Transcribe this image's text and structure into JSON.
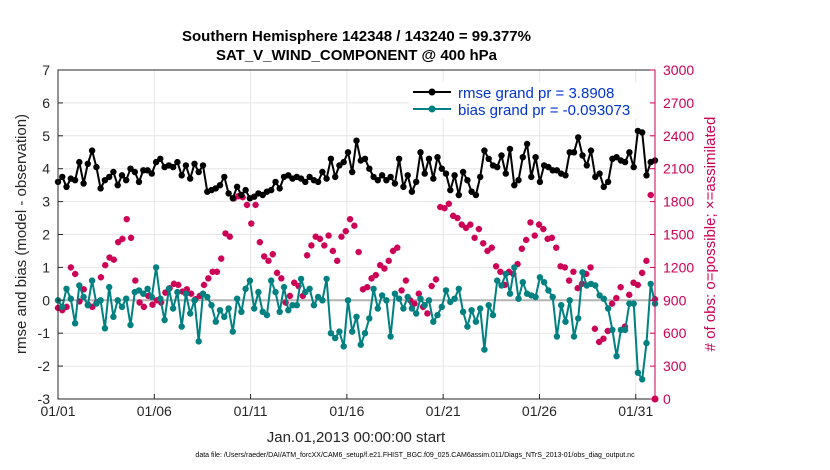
{
  "chart_data": {
    "type": "line",
    "title": "Southern Hemisphere 142348 / 143240 = 99.377%",
    "subtitle": "SAT_V_WIND_COMPONENT @ 400 hPa",
    "xlabel": "Jan.01,2013 00:00:00 start",
    "ylabel": "rmse and bias (model - observation)",
    "ylabel_right": "# of obs: o=possible; ×=assimilated",
    "ylim": [
      -3,
      7
    ],
    "ylim_right": [
      0,
      3000
    ],
    "xlim": [
      1,
      32
    ],
    "x_ticks": [
      1,
      6,
      11,
      16,
      21,
      26,
      31
    ],
    "x_tick_labels": [
      "01/01",
      "01/06",
      "01/11",
      "01/16",
      "01/21",
      "01/26",
      "01/31"
    ],
    "y_ticks": [
      -3,
      -2,
      -1,
      0,
      1,
      2,
      3,
      4,
      5,
      6,
      7
    ],
    "y_tick_labels": [
      "-3",
      "-2",
      "-1",
      "0",
      "1",
      "2",
      "3",
      "4",
      "5",
      "6",
      "7"
    ],
    "y_ticks_right": [
      0,
      300,
      600,
      900,
      1200,
      1500,
      1800,
      2100,
      2400,
      2700,
      3000
    ],
    "y_tick_labels_right": [
      "0",
      "300",
      "600",
      "900",
      "1200",
      "1500",
      "1800",
      "2100",
      "2400",
      "2700",
      "3000"
    ],
    "legend_position": "top-right",
    "zero_line": 0,
    "series": [
      {
        "name": "rmse grand pr = 3.8908",
        "color": "#000000",
        "axis": "left",
        "values": [
          3.6,
          3.75,
          3.45,
          3.7,
          3.65,
          4.2,
          3.55,
          4.15,
          4.55,
          4.05,
          3.4,
          3.65,
          3.75,
          3.9,
          3.5,
          3.8,
          3.65,
          4.0,
          3.9,
          3.6,
          3.95,
          3.95,
          3.85,
          4.2,
          4.3,
          4.05,
          4.1,
          4.05,
          4.2,
          3.8,
          4.1,
          3.7,
          4.15,
          3.9,
          4.1,
          3.3,
          3.35,
          3.4,
          3.5,
          3.75,
          3.25,
          3.1,
          3.45,
          3.2,
          3.35,
          3.1,
          3.15,
          3.25,
          3.2,
          3.3,
          3.35,
          3.6,
          3.4,
          3.75,
          3.8,
          3.7,
          3.75,
          3.7,
          3.6,
          3.75,
          3.65,
          3.6,
          3.9,
          3.7,
          4.3,
          3.75,
          4.1,
          4.2,
          4.5,
          3.9,
          4.85,
          4.25,
          4.3,
          4.0,
          3.75,
          3.65,
          3.8,
          3.65,
          3.75,
          3.55,
          4.3,
          3.45,
          3.8,
          3.3,
          3.6,
          4.5,
          3.85,
          4.3,
          3.7,
          4.35,
          4.0,
          3.85,
          3.35,
          3.8,
          3.2,
          3.9,
          3.65,
          3.3,
          3.2,
          3.75,
          4.55,
          4.3,
          4.1,
          4.05,
          4.4,
          3.85,
          4.6,
          3.5,
          3.65,
          4.35,
          4.75,
          3.75,
          4.35,
          3.6,
          4.1,
          4.05,
          3.95,
          3.95,
          3.85,
          3.8,
          4.5,
          4.5,
          4.95,
          4.4,
          4.1,
          4.55,
          3.75,
          3.85,
          3.45,
          3.6,
          4.3,
          4.35,
          4.25,
          4.2,
          4.5,
          4.05,
          5.15,
          5.1,
          3.8,
          4.2,
          4.25
        ]
      },
      {
        "name": "bias grand pr = -0.093073",
        "color": "#008080",
        "axis": "left",
        "values": [
          0,
          -0.2,
          0.35,
          0.05,
          -0.7,
          0.45,
          0.1,
          -0.15,
          0.6,
          -0.1,
          0.0,
          -0.85,
          0.4,
          -0.5,
          0.0,
          -0.2,
          0.05,
          -0.75,
          0.25,
          0.3,
          0.2,
          0.35,
          0.1,
          1.0,
          0.05,
          -0.6,
          0.35,
          -0.25,
          0.25,
          -0.8,
          0.2,
          -0.4,
          0.0,
          -1.25,
          0.2,
          0.1,
          -0.15,
          -0.65,
          -0.3,
          -0.5,
          -0.25,
          -0.95,
          0.05,
          -0.35,
          0.35,
          0.6,
          -0.25,
          0.25,
          -0.35,
          -0.45,
          0.6,
          0.25,
          -0.35,
          0.4,
          -0.3,
          -0.15,
          -0.15,
          0.65,
          0.25,
          0.35,
          -0.15,
          0.1,
          0.0,
          0.65,
          -1.0,
          -1.15,
          -0.95,
          -1.4,
          0.0,
          -0.95,
          -0.5,
          -1.35,
          -1.0,
          -0.55,
          0.35,
          -0.25,
          0.15,
          0.0,
          -1.1,
          0.2,
          0.05,
          -0.25,
          0.1,
          -0.25,
          -0.4,
          0.05,
          -0.15,
          0.0,
          -0.65,
          -0.45,
          -0.2,
          0.3,
          -0.05,
          0.05,
          0.35,
          -0.35,
          -0.8,
          -0.3,
          -0.65,
          -0.25,
          -1.5,
          -0.15,
          -0.45,
          0.6,
          0.45,
          0.8,
          0.2,
          1.0,
          0.05,
          0.55,
          0.2,
          0.15,
          0.1,
          0.7,
          0.55,
          0.3,
          0.1,
          -1.1,
          -0.15,
          -0.65,
          0.0,
          -1.1,
          -0.55,
          0.85,
          0.45,
          0.5,
          0.45,
          0.15,
          0.05,
          -0.25,
          -0.9,
          -1.7,
          -0.9,
          -0.9,
          -0.1,
          -0.1,
          -2.2,
          -2.4,
          -1.3,
          0.5,
          -0.1
        ]
      }
    ],
    "obs_counts": {
      "name": "# of obs",
      "color": "#cc0055",
      "axis": "right",
      "assimilated": [
        830,
        810,
        840,
        1200,
        1140,
        890,
        1000,
        860,
        840,
        880,
        1110,
        1220,
        1290,
        1270,
        1430,
        1460,
        1640,
        1470,
        1080,
        880,
        840,
        940,
        860,
        900,
        880,
        970,
        1010,
        1050,
        1040,
        980,
        1000,
        960,
        910,
        940,
        1040,
        1100,
        1160,
        1160,
        1280,
        1510,
        1480,
        1830,
        1850,
        1840,
        1770,
        1600,
        1770,
        1430,
        1300,
        1260,
        1320,
        1150,
        1100,
        880,
        940,
        1060,
        1030,
        940,
        1310,
        1400,
        1480,
        1460,
        1400,
        1490,
        1350,
        1260,
        1480,
        1530,
        1640,
        1580,
        1340,
        1000,
        1020,
        1100,
        1130,
        1220,
        1190,
        1260,
        1350,
        1380,
        990,
        1080,
        900,
        870,
        960,
        840,
        780,
        1030,
        1090,
        1750,
        1740,
        1780,
        1670,
        1650,
        1590,
        1560,
        1590,
        1470,
        1550,
        1420,
        1350,
        1380,
        1210,
        1160,
        1040,
        1160,
        1140,
        1230,
        1370,
        1450,
        1610,
        1490,
        1590,
        1550,
        1460,
        1470,
        1380,
        1210,
        1200,
        1080,
        1160,
        1010,
        1050,
        1140,
        1200,
        640,
        520,
        550,
        620,
        870,
        920,
        1020,
        660,
        950,
        1060,
        1040,
        1150,
        1260,
        1860,
        910
      ]
    }
  },
  "footnote": "data file: /Users/raeder/DAI/ATM_forcXX/CAM6_setup/f.e21.FHIST_BGC.f09_025.CAM6assim.011/Diags_NTrS_2013-01/obs_diag_output.nc"
}
